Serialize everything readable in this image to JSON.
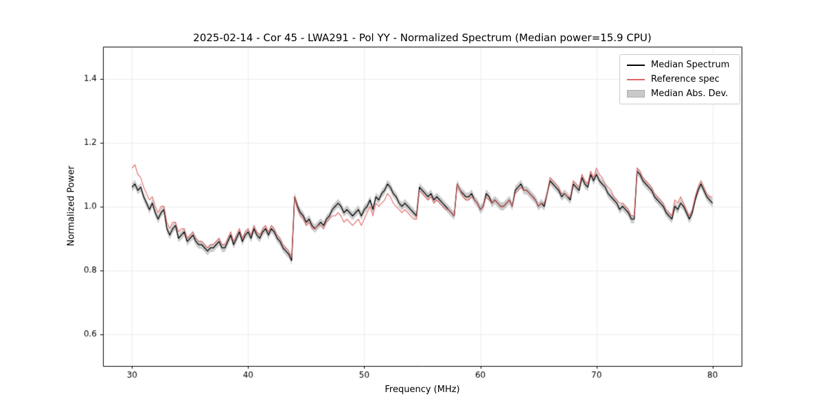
{
  "figure": {
    "title": "2025-02-14 - Cor 45 - LWA291 - Pol YY - Normalized Spectrum (Median power=15.9 CPU)",
    "xlabel": "Frequency (MHz)",
    "ylabel": "Normalized Power"
  },
  "legend": {
    "position": "upper right",
    "items": [
      {
        "label": "Median Spectrum",
        "type": "line",
        "color": "#000000"
      },
      {
        "label": "Reference spec",
        "type": "line",
        "color": "#e06464"
      },
      {
        "label": "Median Abs. Dev.",
        "type": "patch",
        "color": "#c9c9c9"
      }
    ]
  },
  "chart_data": {
    "type": "line",
    "title": "2025-02-14 - Cor 45 - LWA291 - Pol YY - Normalized Spectrum (Median power=15.9 CPU)",
    "xlabel": "Frequency (MHz)",
    "ylabel": "Normalized Power",
    "xlim": [
      27.5,
      82.5
    ],
    "ylim": [
      0.5,
      1.5
    ],
    "xticks": [
      30,
      40,
      50,
      60,
      70,
      80
    ],
    "yticks": [
      0.6,
      0.8,
      1.0,
      1.2,
      1.4
    ],
    "grid": true,
    "legend_position": "upper right",
    "x_start": 30.0,
    "x_step": 0.25,
    "mad_halfwidth": 0.013,
    "series": [
      {
        "name": "Median Spectrum",
        "color": "#000000",
        "alpha": 1.0,
        "values": [
          1.06,
          1.07,
          1.05,
          1.06,
          1.03,
          1.01,
          0.99,
          1.01,
          0.98,
          0.96,
          0.98,
          0.99,
          0.93,
          0.91,
          0.93,
          0.94,
          0.9,
          0.91,
          0.92,
          0.89,
          0.9,
          0.91,
          0.89,
          0.88,
          0.88,
          0.87,
          0.86,
          0.87,
          0.87,
          0.88,
          0.89,
          0.87,
          0.87,
          0.89,
          0.91,
          0.88,
          0.9,
          0.92,
          0.89,
          0.91,
          0.92,
          0.9,
          0.93,
          0.91,
          0.9,
          0.92,
          0.93,
          0.91,
          0.93,
          0.92,
          0.9,
          0.89,
          0.87,
          0.86,
          0.85,
          0.83,
          1.03,
          1.0,
          0.98,
          0.97,
          0.95,
          0.96,
          0.94,
          0.93,
          0.94,
          0.95,
          0.94,
          0.96,
          0.97,
          0.99,
          1.0,
          1.01,
          1.0,
          0.98,
          0.99,
          0.98,
          0.97,
          0.98,
          0.99,
          0.97,
          0.99,
          1.0,
          1.02,
          0.99,
          1.03,
          1.02,
          1.04,
          1.05,
          1.07,
          1.06,
          1.04,
          1.03,
          1.01,
          1.0,
          1.01,
          1.0,
          0.99,
          0.98,
          0.97,
          1.06,
          1.05,
          1.04,
          1.03,
          1.04,
          1.02,
          1.03,
          1.02,
          1.01,
          1.0,
          0.99,
          0.98,
          0.97,
          1.07,
          1.05,
          1.04,
          1.03,
          1.03,
          1.04,
          1.02,
          1.01,
          0.99,
          1.0,
          1.04,
          1.03,
          1.01,
          1.02,
          1.01,
          1.0,
          1.0,
          1.01,
          1.02,
          1.0,
          1.05,
          1.06,
          1.07,
          1.05,
          1.05,
          1.04,
          1.03,
          1.02,
          1.0,
          1.01,
          1.0,
          1.04,
          1.08,
          1.07,
          1.06,
          1.05,
          1.03,
          1.04,
          1.03,
          1.02,
          1.07,
          1.06,
          1.05,
          1.09,
          1.07,
          1.06,
          1.1,
          1.08,
          1.1,
          1.08,
          1.07,
          1.06,
          1.04,
          1.03,
          1.02,
          1.01,
          0.99,
          1.0,
          0.99,
          0.98,
          0.96,
          0.96,
          1.11,
          1.1,
          1.08,
          1.07,
          1.06,
          1.05,
          1.03,
          1.02,
          1.01,
          1.0,
          0.98,
          0.97,
          0.96,
          1.0,
          0.99,
          1.01,
          1.0,
          0.98,
          0.96,
          0.98,
          1.02,
          1.05,
          1.07,
          1.05,
          1.03,
          1.02,
          1.01
        ]
      },
      {
        "name": "Reference spec",
        "color": "#e06464",
        "alpha": 0.85,
        "values": [
          1.12,
          1.13,
          1.1,
          1.09,
          1.06,
          1.04,
          1.02,
          1.03,
          1.0,
          0.98,
          1.0,
          1.0,
          0.95,
          0.93,
          0.95,
          0.95,
          0.92,
          0.93,
          0.93,
          0.9,
          0.91,
          0.92,
          0.9,
          0.89,
          0.89,
          0.88,
          0.87,
          0.88,
          0.88,
          0.89,
          0.9,
          0.88,
          0.88,
          0.9,
          0.92,
          0.89,
          0.91,
          0.93,
          0.9,
          0.92,
          0.93,
          0.91,
          0.94,
          0.92,
          0.91,
          0.93,
          0.94,
          0.92,
          0.94,
          0.93,
          0.91,
          0.9,
          0.88,
          0.87,
          0.86,
          0.84,
          1.03,
          0.99,
          0.97,
          0.96,
          0.94,
          0.95,
          0.93,
          0.93,
          0.94,
          0.94,
          0.93,
          0.95,
          0.96,
          0.97,
          0.97,
          0.98,
          0.97,
          0.95,
          0.96,
          0.95,
          0.94,
          0.95,
          0.96,
          0.94,
          0.96,
          0.98,
          1.0,
          0.97,
          1.01,
          1.0,
          1.01,
          1.02,
          1.04,
          1.03,
          1.01,
          1.0,
          0.99,
          0.98,
          0.99,
          0.98,
          0.97,
          0.96,
          0.96,
          1.05,
          1.04,
          1.03,
          1.02,
          1.03,
          1.01,
          1.02,
          1.01,
          1.0,
          0.99,
          0.99,
          0.98,
          0.97,
          1.07,
          1.05,
          1.03,
          1.02,
          1.02,
          1.03,
          1.02,
          1.01,
          0.99,
          1.0,
          1.03,
          1.02,
          1.01,
          1.02,
          1.01,
          1.0,
          1.0,
          1.01,
          1.02,
          1.0,
          1.04,
          1.05,
          1.06,
          1.05,
          1.05,
          1.04,
          1.03,
          1.02,
          1.0,
          1.01,
          1.01,
          1.04,
          1.09,
          1.08,
          1.07,
          1.06,
          1.04,
          1.04,
          1.03,
          1.03,
          1.08,
          1.07,
          1.06,
          1.1,
          1.08,
          1.07,
          1.11,
          1.09,
          1.12,
          1.1,
          1.09,
          1.07,
          1.06,
          1.05,
          1.03,
          1.02,
          1.01,
          1.01,
          1.0,
          0.99,
          0.97,
          0.97,
          1.12,
          1.11,
          1.09,
          1.08,
          1.07,
          1.06,
          1.04,
          1.03,
          1.02,
          1.01,
          0.99,
          0.98,
          0.97,
          1.02,
          1.01,
          1.03,
          1.01,
          0.99,
          0.97,
          0.99,
          1.03,
          1.06,
          1.08,
          1.06,
          1.04,
          1.03,
          1.03
        ]
      }
    ]
  }
}
